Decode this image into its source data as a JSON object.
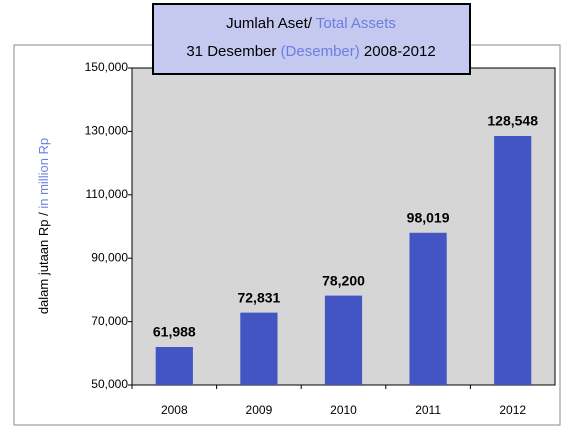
{
  "chart_data": {
    "type": "bar",
    "title": "Jumlah Aset/",
    "title_en": "Total Assets",
    "subtitle": [
      "31 Desember",
      "(Desember)",
      "2008-2012"
    ],
    "y_label": "dalam jutaan Rp /",
    "y_label_en": "in million Rp",
    "categories": [
      "2008",
      "2009",
      "2010",
      "2011",
      "2012"
    ],
    "values": [
      61988,
      72831,
      78200,
      98019,
      128548
    ],
    "value_labels": [
      "61,988",
      "72,831",
      "78,200",
      "98,019",
      "128,548"
    ],
    "color": "#4355c2",
    "ylim": [
      50000,
      150000
    ],
    "yticks": [
      {
        "value": 50000,
        "label": "50,000"
      },
      {
        "value": 70000,
        "label": "70,000"
      },
      {
        "value": 90000,
        "label": "90,000"
      },
      {
        "value": 110000,
        "label": "110,000"
      },
      {
        "value": 130000,
        "label": "130,000"
      },
      {
        "value": 150000,
        "label": "150,000"
      }
    ],
    "grid": false
  }
}
